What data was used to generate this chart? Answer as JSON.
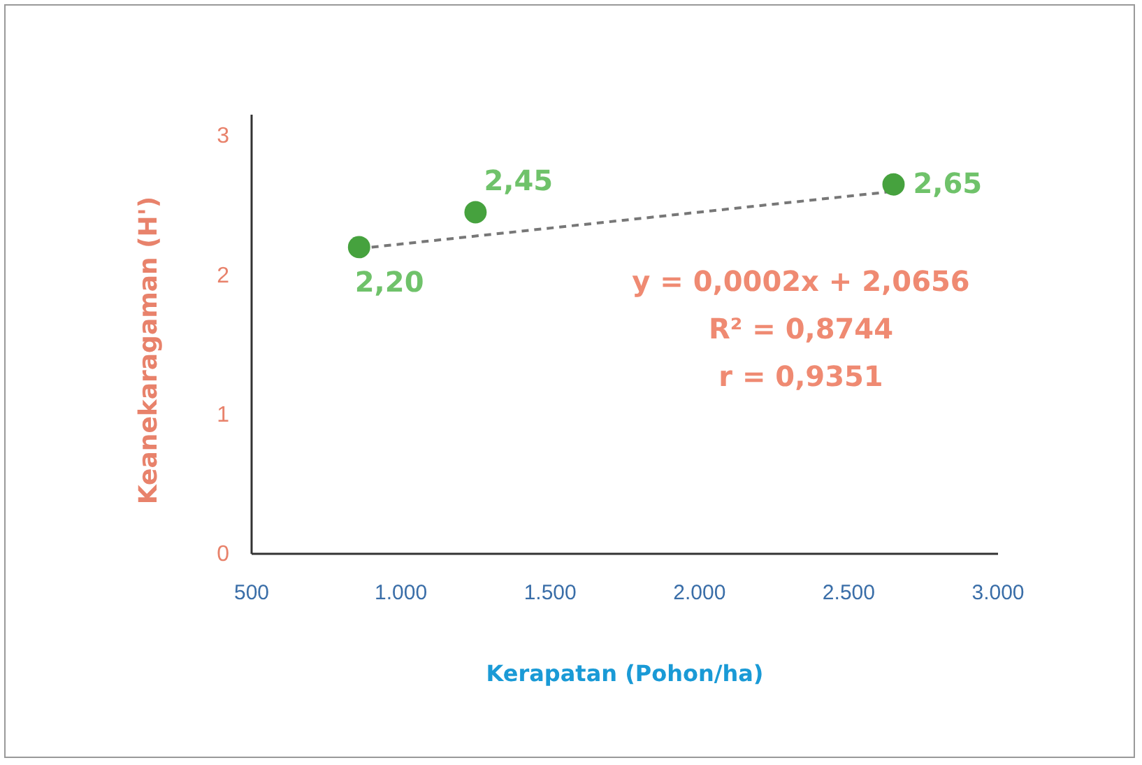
{
  "chart_data": {
    "type": "scatter",
    "xlabel": "Kerapatan (Pohon/ha)",
    "ylabel": "Keanekaragaman (H')",
    "xlim": [
      500,
      3000
    ],
    "xticks": [
      500,
      {
        "value": 1000,
        "label": "1.000"
      },
      {
        "value": 1500,
        "label": "1.500"
      },
      {
        "value": 2000,
        "label": "2.000"
      },
      {
        "value": 2500,
        "label": "2.500"
      },
      {
        "value": 3000,
        "label": "3.000"
      }
    ],
    "ylim": [
      0,
      3.15
    ],
    "yticks": [
      0,
      1,
      2,
      3
    ],
    "grid": false,
    "series": [
      {
        "color": "#46a23e",
        "x": [
          860,
          1250,
          2650
        ],
        "values": [
          2.2,
          2.45,
          2.65
        ],
        "value_labels": [
          "2,20",
          "2,45",
          "2,65"
        ],
        "marker": "circle"
      },
      {
        "type": "line",
        "color": "#777777",
        "x": [
          860,
          2650
        ],
        "values": [
          2.19,
          2.6
        ],
        "line_style": "dashed",
        "marker": "none"
      }
    ],
    "annotations": [
      "y = 0,0002x + 2,0656",
      "R² = 0,8744",
      "r = 0,9351"
    ]
  }
}
